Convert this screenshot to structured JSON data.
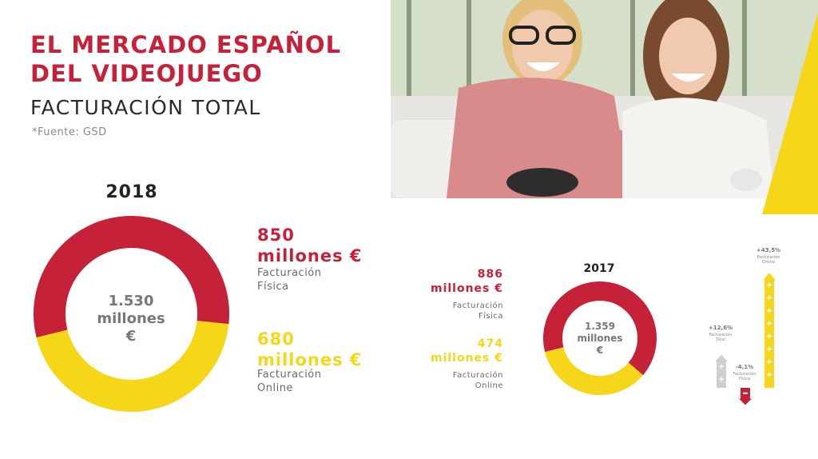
{
  "header": {
    "title_line1": "EL MERCADO ESPAÑOL",
    "title_line2": "DEL VIDEOJUEGO",
    "subtitle": "FACTURACIÓN TOTAL",
    "source": "*Fuente: GSD"
  },
  "colors": {
    "red": "#c5223a",
    "yellow": "#f5d619",
    "gray": "#cfcfcf"
  },
  "chart_data": [
    {
      "type": "pie",
      "title": "2018",
      "center_label": [
        "1.530",
        "millones",
        "€"
      ],
      "total": 1530,
      "slices": [
        {
          "name": "Facturación Física",
          "value": 850,
          "amount_line1": "850",
          "amount_line2": "millones €",
          "label_line1": "Facturación",
          "label_line2": "Física",
          "color": "#c5223a"
        },
        {
          "name": "Facturación Online",
          "value": 680,
          "amount_line1": "680",
          "amount_line2": "millones €",
          "label_line1": "Facturación",
          "label_line2": "Online",
          "color": "#f5d619"
        }
      ]
    },
    {
      "type": "pie",
      "title": "2017",
      "center_label": [
        "1.359",
        "millones",
        "€"
      ],
      "total": 1359,
      "slices": [
        {
          "name": "Facturación Física",
          "value": 886,
          "amount_line1": "886",
          "amount_line2": "millones €",
          "label_line1": "Facturación",
          "label_line2": "Física",
          "color": "#c5223a"
        },
        {
          "name": "Facturación Online",
          "value": 474,
          "amount_line1": "474",
          "amount_line2": "millones €",
          "label_line1": "Facturación",
          "label_line2": "Online",
          "color": "#f5d619"
        }
      ]
    },
    {
      "type": "bar",
      "categories": [
        "Facturación Total",
        "Facturación Física",
        "Facturación Online"
      ],
      "values": [
        12.6,
        -4.1,
        43.5
      ],
      "value_labels": [
        "+12,6%",
        "-4,1%",
        "+43,5%"
      ],
      "label_lines": [
        [
          "Facturación",
          "Total"
        ],
        [
          "Facturación",
          "Física"
        ],
        [
          "Facturación",
          "Online"
        ]
      ],
      "colors": [
        "#cfcfcf",
        "#c5223a",
        "#f5d619"
      ]
    }
  ]
}
